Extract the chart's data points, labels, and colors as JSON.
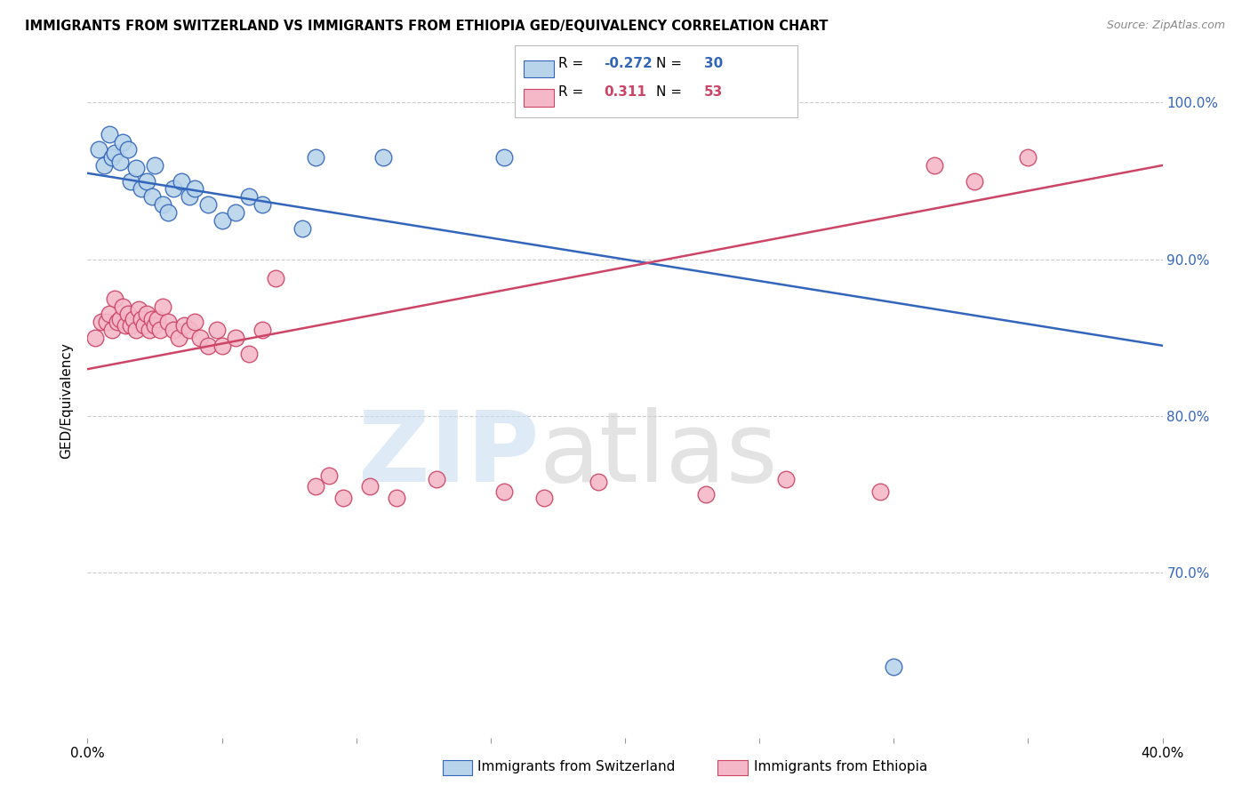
{
  "title": "IMMIGRANTS FROM SWITZERLAND VS IMMIGRANTS FROM ETHIOPIA GED/EQUIVALENCY CORRELATION CHART",
  "source": "Source: ZipAtlas.com",
  "ylabel": "GED/Equivalency",
  "x_min": 0.0,
  "x_max": 0.4,
  "y_min": 0.595,
  "y_max": 1.025,
  "legend_r_blue": "-0.272",
  "legend_n_blue": "30",
  "legend_r_pink": "0.311",
  "legend_n_pink": "53",
  "legend_label_blue": "Immigrants from Switzerland",
  "legend_label_pink": "Immigrants from Ethiopia",
  "blue_color": "#b8d4ea",
  "pink_color": "#f5b8c8",
  "blue_line_color": "#3366bb",
  "pink_line_color": "#cc4466",
  "blue_scatter_x": [
    0.004,
    0.006,
    0.008,
    0.009,
    0.01,
    0.012,
    0.013,
    0.015,
    0.016,
    0.018,
    0.02,
    0.022,
    0.024,
    0.025,
    0.028,
    0.03,
    0.032,
    0.035,
    0.038,
    0.04,
    0.045,
    0.05,
    0.055,
    0.06,
    0.065,
    0.08,
    0.085,
    0.11,
    0.155,
    0.3
  ],
  "blue_scatter_y": [
    0.97,
    0.96,
    0.98,
    0.965,
    0.968,
    0.962,
    0.975,
    0.97,
    0.95,
    0.958,
    0.945,
    0.95,
    0.94,
    0.96,
    0.935,
    0.93,
    0.945,
    0.95,
    0.94,
    0.945,
    0.935,
    0.925,
    0.93,
    0.94,
    0.935,
    0.92,
    0.965,
    0.965,
    0.965,
    0.64
  ],
  "pink_scatter_x": [
    0.003,
    0.005,
    0.007,
    0.008,
    0.009,
    0.01,
    0.011,
    0.012,
    0.013,
    0.014,
    0.015,
    0.016,
    0.017,
    0.018,
    0.019,
    0.02,
    0.021,
    0.022,
    0.023,
    0.024,
    0.025,
    0.026,
    0.027,
    0.028,
    0.03,
    0.032,
    0.034,
    0.036,
    0.038,
    0.04,
    0.042,
    0.045,
    0.048,
    0.05,
    0.055,
    0.06,
    0.065,
    0.07,
    0.085,
    0.09,
    0.095,
    0.105,
    0.115,
    0.13,
    0.155,
    0.17,
    0.19,
    0.23,
    0.26,
    0.295,
    0.315,
    0.33,
    0.35
  ],
  "pink_scatter_y": [
    0.85,
    0.86,
    0.86,
    0.865,
    0.855,
    0.875,
    0.86,
    0.862,
    0.87,
    0.858,
    0.865,
    0.858,
    0.862,
    0.855,
    0.868,
    0.862,
    0.858,
    0.865,
    0.855,
    0.862,
    0.858,
    0.862,
    0.855,
    0.87,
    0.86,
    0.855,
    0.85,
    0.858,
    0.855,
    0.86,
    0.85,
    0.845,
    0.855,
    0.845,
    0.85,
    0.84,
    0.855,
    0.888,
    0.755,
    0.762,
    0.748,
    0.755,
    0.748,
    0.76,
    0.752,
    0.748,
    0.758,
    0.75,
    0.76,
    0.752,
    0.96,
    0.95,
    0.965
  ],
  "blue_trend_x0": 0.0,
  "blue_trend_y0": 0.955,
  "blue_trend_x1": 0.4,
  "blue_trend_y1": 0.845,
  "pink_trend_x0": 0.0,
  "pink_trend_y0": 0.83,
  "pink_trend_x1": 0.4,
  "pink_trend_y1": 0.96
}
